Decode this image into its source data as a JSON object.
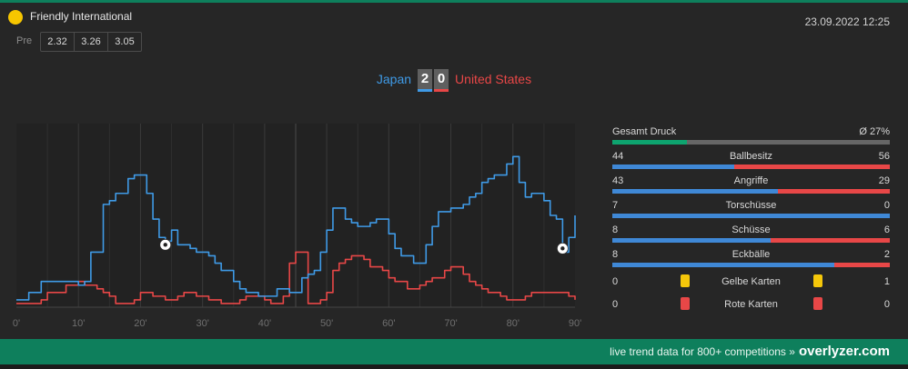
{
  "match": {
    "league": "Friendly International",
    "datetime": "23.09.2022 12:25",
    "pre_label": "Pre",
    "odds": [
      "2.32",
      "3.26",
      "3.05"
    ],
    "home_team": "Japan",
    "away_team": "United States",
    "home_score": "2",
    "away_score": "0"
  },
  "colors": {
    "home": "#3f9ae6",
    "away": "#e84747",
    "brand": "#0e7f5c",
    "league_dot": "#f7c600"
  },
  "chart_data": {
    "type": "line",
    "x_ticks": [
      "0'",
      "10'",
      "20'",
      "30'",
      "40'",
      "50'",
      "60'",
      "70'",
      "80'",
      "90'"
    ],
    "xlim": [
      0,
      90
    ],
    "ylim": [
      0,
      100
    ],
    "series": [
      {
        "team": "home",
        "x": [
          0,
          2,
          4,
          5,
          8,
          10,
          11,
          12,
          13,
          14,
          15,
          16,
          17,
          18,
          19,
          20,
          21,
          22,
          23,
          24,
          25,
          26,
          27,
          28,
          29,
          30,
          31,
          32,
          33,
          34,
          35,
          36,
          37,
          38,
          39,
          40,
          41,
          42,
          43,
          44,
          45,
          46,
          47,
          48,
          49,
          50,
          51,
          52,
          53,
          54,
          55,
          56,
          57,
          58,
          59,
          60,
          61,
          62,
          63,
          64,
          65,
          66,
          67,
          68,
          69,
          70,
          71,
          72,
          73,
          74,
          75,
          76,
          77,
          78,
          79,
          80,
          81,
          82,
          83,
          84,
          85,
          86,
          87,
          88,
          89,
          90
        ],
        "y": [
          4,
          8,
          14,
          14,
          14,
          12,
          14,
          30,
          30,
          56,
          58,
          62,
          62,
          70,
          72,
          72,
          62,
          48,
          38,
          36,
          42,
          34,
          34,
          32,
          30,
          30,
          28,
          24,
          20,
          20,
          14,
          10,
          8,
          8,
          6,
          6,
          6,
          10,
          10,
          8,
          8,
          16,
          18,
          20,
          30,
          42,
          54,
          54,
          48,
          46,
          44,
          44,
          46,
          48,
          48,
          40,
          32,
          28,
          28,
          24,
          24,
          34,
          44,
          52,
          52,
          54,
          54,
          56,
          60,
          62,
          68,
          70,
          72,
          72,
          78,
          82,
          68,
          60,
          62,
          62,
          58,
          50,
          48,
          30,
          38,
          50
        ]
      },
      {
        "team": "away",
        "x": [
          0,
          2,
          4,
          5,
          8,
          10,
          11,
          12,
          13,
          14,
          15,
          16,
          17,
          18,
          19,
          20,
          21,
          22,
          23,
          24,
          25,
          26,
          27,
          28,
          29,
          30,
          31,
          32,
          33,
          34,
          35,
          36,
          37,
          38,
          39,
          40,
          41,
          42,
          43,
          44,
          45,
          46,
          47,
          48,
          49,
          50,
          51,
          52,
          53,
          54,
          55,
          56,
          57,
          58,
          59,
          60,
          61,
          62,
          63,
          64,
          65,
          66,
          67,
          68,
          69,
          70,
          71,
          72,
          73,
          74,
          75,
          76,
          77,
          78,
          79,
          80,
          81,
          82,
          83,
          84,
          85,
          86,
          87,
          88,
          89,
          90
        ],
        "y": [
          2,
          2,
          4,
          8,
          12,
          14,
          12,
          12,
          10,
          8,
          6,
          2,
          2,
          2,
          4,
          8,
          8,
          6,
          6,
          4,
          4,
          6,
          8,
          8,
          6,
          6,
          4,
          4,
          2,
          2,
          2,
          4,
          6,
          6,
          6,
          4,
          2,
          2,
          6,
          24,
          30,
          30,
          2,
          2,
          4,
          8,
          20,
          24,
          26,
          28,
          28,
          26,
          22,
          22,
          20,
          16,
          14,
          14,
          10,
          10,
          12,
          14,
          16,
          16,
          20,
          22,
          22,
          18,
          14,
          12,
          10,
          8,
          8,
          6,
          4,
          4,
          4,
          6,
          8,
          8,
          8,
          8,
          8,
          8,
          6,
          4
        ]
      }
    ],
    "goals": [
      {
        "team": "home",
        "minute": 24,
        "y": 34
      },
      {
        "team": "home",
        "minute": 88,
        "y": 32
      }
    ]
  },
  "stats": {
    "pressure": {
      "label": "Gesamt Druck",
      "avg": "Ø 27%",
      "home_share": 27
    },
    "rows": [
      {
        "label": "Ballbesitz",
        "home": "44",
        "away": "56"
      },
      {
        "label": "Angriffe",
        "home": "43",
        "away": "29"
      },
      {
        "label": "Torschüsse",
        "home": "7",
        "away": "0"
      },
      {
        "label": "Schüsse",
        "home": "8",
        "away": "6"
      },
      {
        "label": "Eckbälle",
        "home": "8",
        "away": "2"
      }
    ],
    "yellow": {
      "label": "Gelbe Karten",
      "home": "0",
      "away": "1"
    },
    "red": {
      "label": "Rote Karten",
      "home": "0",
      "away": "0"
    }
  },
  "footer": {
    "text": "live trend data for 800+ competitions »",
    "brand": "overlyzer.com"
  }
}
